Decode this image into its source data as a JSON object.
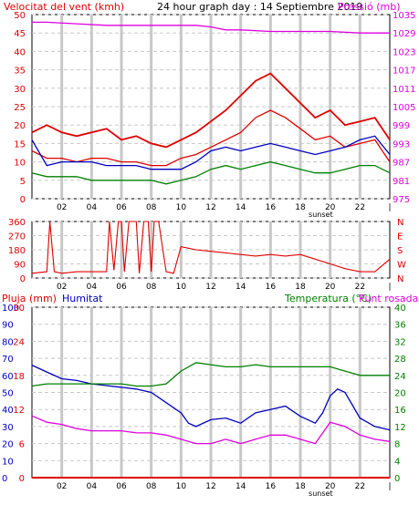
{
  "title": "24 hour graph day : 14 Septiembre 2019",
  "colors": {
    "wind": "#e00000",
    "gust": "#e00000",
    "humidity": "#0000c0",
    "temperature": "#008000",
    "dewpoint": "#e000e0",
    "pressure": "#e000e0",
    "rain": "#e00000",
    "grid": "#c8c8c8",
    "frame": "#000000"
  },
  "x_ticks": [
    "02",
    "04",
    "06",
    "08",
    "10",
    "12",
    "14",
    "16",
    "18",
    "20",
    "22"
  ],
  "x_end_mark": "|",
  "sunset_label": "sunset",
  "chart_data": [
    {
      "type": "line",
      "name": "wind-pressure",
      "left_axis_label": "Velocitat del vent (kmh)",
      "right_axis_label": "Pressió (mb)",
      "left_ticks": [
        0,
        5,
        10,
        15,
        20,
        25,
        30,
        35,
        40,
        45,
        50
      ],
      "left_range": [
        0,
        50
      ],
      "right_ticks": [
        975,
        981,
        987,
        993,
        999,
        1005,
        1011,
        1017,
        1023,
        1029,
        1035
      ],
      "right_range": [
        975,
        1035
      ],
      "grid": true,
      "x_range": [
        0,
        24
      ],
      "series": [
        {
          "key": "pressure",
          "axis": "right",
          "x": [
            0,
            1,
            3,
            5,
            7,
            9,
            11,
            12,
            13,
            14,
            16,
            18,
            20,
            22,
            24
          ],
          "y": [
            1032.5,
            1032.5,
            1032,
            1031.5,
            1031.5,
            1031.5,
            1031.5,
            1031,
            1030,
            1030,
            1029.5,
            1029.5,
            1029.5,
            1029,
            1029
          ]
        },
        {
          "key": "gust",
          "axis": "left",
          "x": [
            0,
            1,
            2,
            3,
            4,
            5,
            6,
            7,
            8,
            9,
            10,
            11,
            12,
            13,
            14,
            15,
            16,
            17,
            18,
            19,
            20,
            21,
            22,
            23,
            24
          ],
          "y": [
            18,
            20,
            18,
            17,
            18,
            19,
            16,
            17,
            15,
            14,
            16,
            18,
            21,
            24,
            28,
            32,
            34,
            30,
            26,
            22,
            24,
            20,
            21,
            22,
            16
          ]
        },
        {
          "key": "wind",
          "axis": "left",
          "x": [
            0,
            1,
            2,
            3,
            4,
            5,
            6,
            7,
            8,
            9,
            10,
            11,
            12,
            13,
            14,
            15,
            16,
            17,
            18,
            19,
            20,
            21,
            22,
            23,
            24
          ],
          "y": [
            13,
            11,
            11,
            10,
            11,
            11,
            10,
            10,
            9,
            9,
            11,
            12,
            14,
            16,
            18,
            22,
            24,
            22,
            19,
            16,
            17,
            14,
            15,
            16,
            10
          ]
        },
        {
          "key": "humidity_small",
          "axis": "left",
          "x": [
            0,
            1,
            2,
            3,
            4,
            5,
            6,
            7,
            8,
            9,
            10,
            11,
            12,
            13,
            14,
            15,
            16,
            17,
            18,
            19,
            20,
            21,
            22,
            23,
            24
          ],
          "y": [
            16,
            9,
            10,
            10,
            10,
            9,
            9,
            9,
            8,
            8,
            8,
            10,
            13,
            14,
            13,
            14,
            15,
            14,
            13,
            12,
            13,
            14,
            16,
            17,
            12
          ]
        },
        {
          "key": "temperature_small",
          "axis": "left",
          "x": [
            0,
            1,
            2,
            3,
            4,
            5,
            6,
            7,
            8,
            9,
            10,
            11,
            12,
            13,
            14,
            15,
            16,
            17,
            18,
            19,
            20,
            21,
            22,
            23,
            24
          ],
          "y": [
            7,
            6,
            6,
            6,
            5,
            5,
            5,
            5,
            5,
            4,
            5,
            6,
            8,
            9,
            8,
            9,
            10,
            9,
            8,
            7,
            7,
            8,
            9,
            9,
            7
          ]
        }
      ]
    },
    {
      "type": "scatter",
      "name": "wind-direction",
      "left_ticks": [
        0,
        90,
        180,
        270,
        360
      ],
      "left_range": [
        0,
        360
      ],
      "right_labels": [
        "N",
        "W",
        "S",
        "E",
        "N"
      ],
      "grid": true,
      "x_range": [
        0,
        24
      ],
      "series": [
        {
          "key": "direction",
          "axis": "left",
          "x": [
            0,
            1,
            1.2,
            1.5,
            2,
            3,
            4,
            5,
            5.2,
            5.5,
            5.8,
            6,
            6.2,
            6.5,
            7,
            7.2,
            7.5,
            7.8,
            8,
            8.2,
            8.5,
            9,
            9.5,
            10,
            10.5,
            11,
            12,
            13,
            14,
            15,
            16,
            17,
            18,
            19,
            20,
            21,
            22,
            23,
            24
          ],
          "y": [
            30,
            40,
            360,
            40,
            30,
            40,
            40,
            40,
            360,
            50,
            360,
            360,
            40,
            360,
            360,
            30,
            360,
            360,
            40,
            360,
            360,
            40,
            30,
            200,
            190,
            180,
            170,
            160,
            150,
            140,
            150,
            140,
            150,
            120,
            90,
            60,
            40,
            40,
            120
          ]
        }
      ]
    },
    {
      "type": "line",
      "name": "humidity-temperature-rain",
      "left_axis_label_1": "Pluja (mm)",
      "left_axis_label_2": "Humitat",
      "right_axis_label_1": "Temperatura (°C)",
      "right_axis_label_2": "Punt rosada",
      "rain_ticks": [
        0,
        10,
        20,
        30,
        40,
        50,
        60,
        70,
        80,
        90,
        100
      ],
      "humidity_ticks": [
        0,
        6,
        12,
        18,
        24,
        30
      ],
      "right_ticks": [
        0,
        4,
        8,
        12,
        16,
        20,
        24,
        28,
        32,
        36,
        40
      ],
      "rain_range": [
        0,
        30
      ],
      "humidity_range": [
        0,
        100
      ],
      "temp_range": [
        0,
        40
      ],
      "grid": true,
      "x_range": [
        0,
        24
      ],
      "series": [
        {
          "key": "humidity",
          "axis": "humidity",
          "x": [
            0,
            1,
            2,
            3,
            4,
            5,
            6,
            7,
            8,
            9,
            10,
            10.5,
            11,
            12,
            13,
            14,
            15,
            16,
            17,
            18,
            19,
            19.5,
            20,
            20.5,
            21,
            22,
            23,
            24
          ],
          "y": [
            66,
            62,
            58,
            57,
            55,
            54,
            53,
            52,
            50,
            44,
            38,
            32,
            30,
            34,
            35,
            32,
            38,
            40,
            42,
            36,
            32,
            38,
            48,
            52,
            50,
            35,
            30,
            28
          ]
        },
        {
          "key": "temperature",
          "axis": "temp",
          "x": [
            0,
            1,
            2,
            3,
            4,
            5,
            6,
            7,
            8,
            9,
            10,
            11,
            12,
            13,
            14,
            15,
            16,
            17,
            18,
            19,
            20,
            21,
            22,
            23,
            24
          ],
          "y": [
            21.5,
            22,
            22,
            22,
            22,
            22,
            22,
            21.5,
            21.5,
            22,
            25,
            27,
            26.5,
            26,
            26,
            26.5,
            26,
            26,
            26,
            26,
            26,
            25,
            24,
            24,
            24
          ]
        },
        {
          "key": "dewpoint",
          "axis": "temp",
          "x": [
            0,
            1,
            2,
            3,
            4,
            5,
            6,
            7,
            8,
            9,
            10,
            11,
            12,
            13,
            14,
            15,
            16,
            17,
            18,
            19,
            20,
            21,
            22,
            23,
            24
          ],
          "y": [
            14.5,
            13,
            12.5,
            11.5,
            11,
            11,
            11,
            10.5,
            10.5,
            10,
            9,
            8,
            8,
            9,
            8,
            9,
            10,
            10,
            9,
            8,
            13,
            12,
            10,
            9,
            8.5
          ]
        },
        {
          "key": "rain",
          "axis": "rain",
          "x": [
            0,
            24
          ],
          "y": [
            0,
            0
          ]
        }
      ]
    }
  ]
}
